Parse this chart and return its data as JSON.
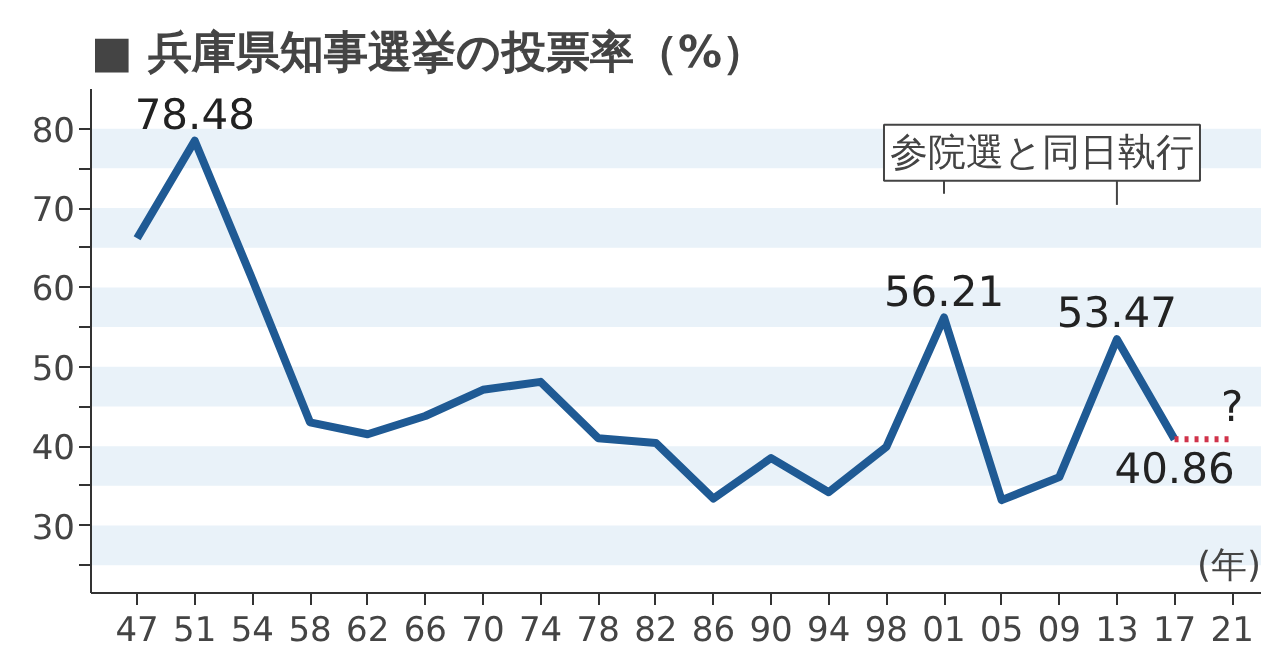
{
  "chart_data": {
    "type": "line",
    "title": "■ 兵庫県知事選挙の投票率（%）",
    "xlabel": "(年)",
    "categories": [
      "47",
      "51",
      "54",
      "58",
      "62",
      "66",
      "70",
      "74",
      "78",
      "82",
      "86",
      "90",
      "94",
      "98",
      "01",
      "05",
      "09",
      "13",
      "17",
      "21"
    ],
    "series": [
      {
        "color": "#1f5a94",
        "values": [
          66.2,
          78.48,
          61,
          43.0,
          41.5,
          43.8,
          47.1,
          48.1,
          41.0,
          40.4,
          33.4,
          38.5,
          34.2,
          39.9,
          56.21,
          33.2,
          36.1,
          53.47,
          40.86,
          null
        ],
        "value_labels": [
          null,
          "78.48",
          null,
          null,
          null,
          null,
          null,
          null,
          null,
          null,
          null,
          null,
          null,
          null,
          "56.21",
          null,
          null,
          "53.47",
          "40.86",
          null
        ]
      },
      {
        "color": "#d0334a",
        "line_style": "dotted",
        "values": [
          null,
          null,
          null,
          null,
          null,
          null,
          null,
          null,
          null,
          null,
          null,
          null,
          null,
          null,
          null,
          null,
          null,
          null,
          40.86,
          40.86
        ]
      }
    ],
    "ylim": [
      21.5,
      85
    ],
    "yticks": [
      {
        "value": 25,
        "label": null
      },
      30,
      {
        "value": 35,
        "label": null
      },
      40,
      {
        "value": 45,
        "label": null
      },
      50,
      {
        "value": 55,
        "label": null
      },
      60,
      {
        "value": 65,
        "label": null
      },
      70,
      {
        "value": 75,
        "label": null
      },
      80
    ],
    "bands": [
      {
        "axis": "y",
        "from": 25,
        "to": 30,
        "color": "#e9f2f9"
      },
      {
        "axis": "y",
        "from": 35,
        "to": 40,
        "color": "#e9f2f9"
      },
      {
        "axis": "y",
        "from": 45,
        "to": 50,
        "color": "#e9f2f9"
      },
      {
        "axis": "y",
        "from": 55,
        "to": 60,
        "color": "#e9f2f9"
      },
      {
        "axis": "y",
        "from": 65,
        "to": 70,
        "color": "#e9f2f9"
      },
      {
        "axis": "y",
        "from": 75,
        "to": 80,
        "color": "#e9f2f9"
      }
    ],
    "annotations": [
      "参院選と同日執行",
      "?"
    ],
    "grid": false,
    "marker": "none",
    "line_style": "solid"
  }
}
